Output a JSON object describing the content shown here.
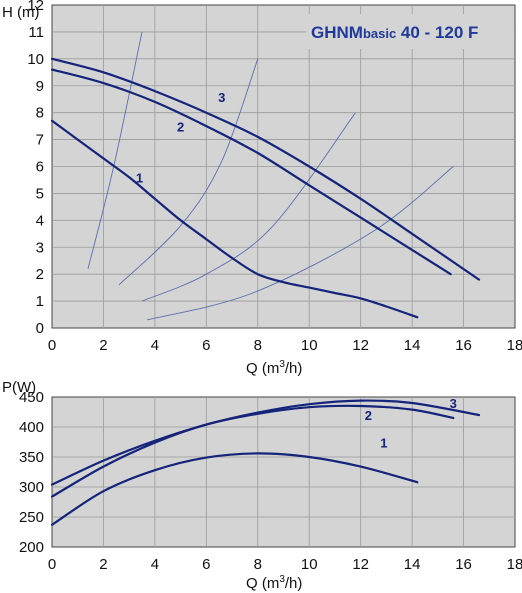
{
  "colors": {
    "background": "#d4d4d4",
    "curve": "#14247a",
    "system": "#5a6fae",
    "grid": "#9a9a9a",
    "title": "#1e3a9a"
  },
  "chart_data": [
    {
      "type": "line",
      "title": "GHNMbasic 40 - 120 F",
      "title_main": "GHNM",
      "title_sub": "basic",
      "title_rest": " 40 - 120 F",
      "ylabel": "H (m)",
      "xlabel": "Q (m3/h)",
      "xlabel_main": "Q (m",
      "xlabel_sup": "3",
      "xlabel_end": "/h)",
      "xlim": [
        0,
        18
      ],
      "ylim": [
        0,
        12
      ],
      "xticks": [
        "0",
        "2",
        "4",
        "6",
        "8",
        "10",
        "12",
        "14",
        "16",
        "18"
      ],
      "yticks": [
        "0",
        "1",
        "2",
        "3",
        "4",
        "5",
        "6",
        "7",
        "8",
        "9",
        "10",
        "11",
        "12"
      ],
      "grid": true,
      "series": [
        {
          "label": "1",
          "label_at": [
            3.4,
            5.4
          ],
          "x": [
            0,
            1,
            2,
            3,
            4,
            5,
            6,
            7,
            8,
            9,
            10,
            11,
            12,
            13,
            14.2
          ],
          "y": [
            7.7,
            7.0,
            6.3,
            5.6,
            4.8,
            4.0,
            3.3,
            2.6,
            2.0,
            1.7,
            1.5,
            1.3,
            1.1,
            0.8,
            0.4
          ]
        },
        {
          "label": "2",
          "label_at": [
            5.0,
            7.3
          ],
          "x": [
            0,
            2,
            4,
            6,
            8,
            10,
            12,
            14,
            15.5
          ],
          "y": [
            9.6,
            9.1,
            8.4,
            7.5,
            6.5,
            5.3,
            4.1,
            2.9,
            2.0
          ]
        },
        {
          "label": "3",
          "label_at": [
            6.6,
            8.4
          ],
          "x": [
            0,
            2,
            4,
            6,
            8,
            10,
            12,
            14,
            16.6
          ],
          "y": [
            10.0,
            9.5,
            8.8,
            8.0,
            7.1,
            6.0,
            4.8,
            3.5,
            1.8
          ]
        }
      ],
      "system_curves": [
        {
          "x": [
            1.4,
            2.4,
            3.5
          ],
          "y": [
            2.2,
            6.0,
            11.0
          ]
        },
        {
          "x": [
            2.6,
            5.0,
            6.6,
            8.0
          ],
          "y": [
            1.6,
            3.8,
            6.2,
            10.0
          ]
        },
        {
          "x": [
            3.5,
            6.0,
            8.6,
            11.8
          ],
          "y": [
            1.0,
            2.0,
            3.8,
            8.0
          ]
        },
        {
          "x": [
            3.7,
            7.8,
            12.5,
            15.6
          ],
          "y": [
            0.3,
            1.3,
            3.6,
            6.0
          ]
        }
      ]
    },
    {
      "type": "line",
      "title": "",
      "ylabel": "P(W)",
      "xlabel": "Q (m3/h)",
      "xlabel_main": "Q (m",
      "xlabel_sup": "3",
      "xlabel_end": "/h)",
      "xlim": [
        0,
        18
      ],
      "ylim": [
        200,
        450
      ],
      "xticks": [
        "0",
        "2",
        "4",
        "6",
        "8",
        "10",
        "12",
        "14",
        "16",
        "18"
      ],
      "yticks": [
        "200",
        "250",
        "300",
        "350",
        "400",
        "450"
      ],
      "grid": true,
      "series": [
        {
          "label": "1",
          "label_at": [
            12.9,
            366
          ],
          "x": [
            0,
            2,
            4,
            6,
            8,
            10,
            12,
            14.2
          ],
          "y": [
            237,
            293,
            328,
            349,
            356,
            350,
            334,
            308
          ]
        },
        {
          "label": "2",
          "label_at": [
            12.3,
            412
          ],
          "x": [
            0,
            2,
            4,
            6,
            8,
            10,
            12,
            14,
            15.6
          ],
          "y": [
            284,
            334,
            374,
            404,
            422,
            433,
            435,
            429,
            415
          ]
        },
        {
          "label": "3",
          "label_at": [
            15.6,
            432
          ],
          "x": [
            0,
            2,
            4,
            6,
            8,
            10,
            12,
            14,
            16.6
          ],
          "y": [
            304,
            344,
            377,
            404,
            424,
            438,
            444,
            440,
            420
          ]
        }
      ]
    }
  ]
}
